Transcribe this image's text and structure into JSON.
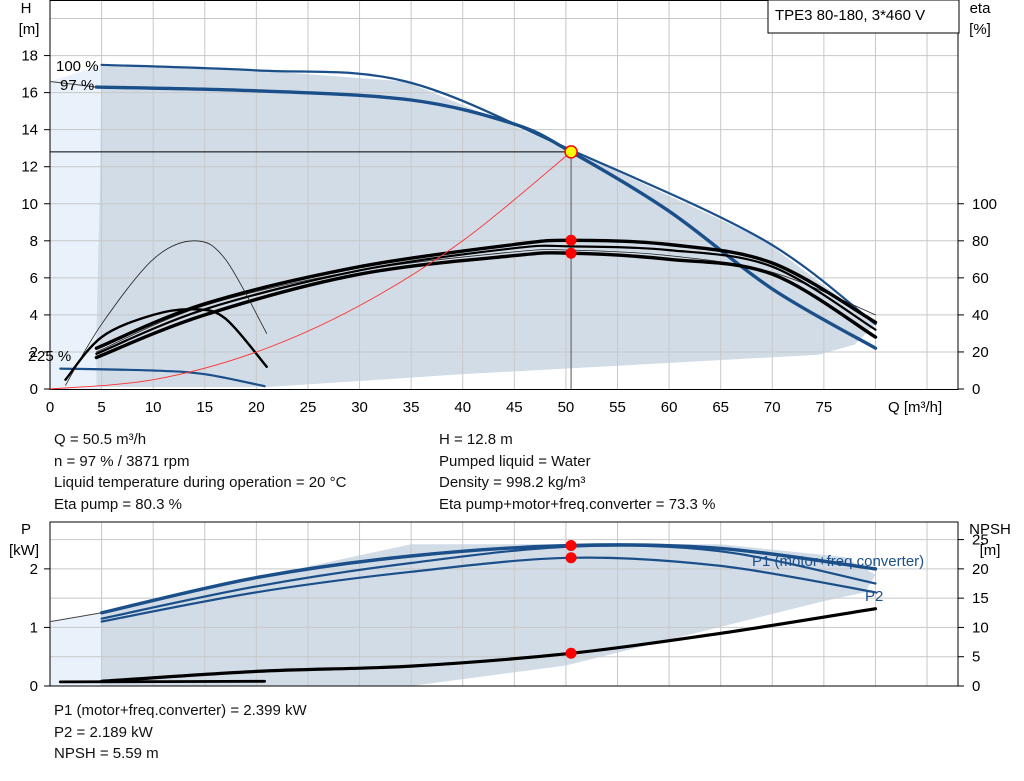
{
  "pump_title": "TPE3 80-180, 3*460 V",
  "info": {
    "q": "Q = 50.5 m³/h",
    "n": "n = 97 % / 3871 rpm",
    "liquid_temp": "Liquid temperature during operation = 20 °C",
    "eta_pump": "Eta pump = 80.3 %",
    "h": "H = 12.8 m",
    "pumped_liquid": "Pumped liquid = Water",
    "density": "Density = 998.2 kg/m³",
    "eta_total": "Eta pump+motor+freq.converter = 73.3 %",
    "p1": "P1 (motor+freq.converter) = 2.399 kW",
    "p2": "P2 = 2.189 kW",
    "npsh": "NPSH = 5.59 m"
  },
  "colors": {
    "area": "#d1dce7",
    "area_light": "#e9f2fb",
    "curve_blue": "#1b4f8a",
    "curve_black": "#000000",
    "system_curve": "#ff3030",
    "duty_point": "#ff0000",
    "duty_ring": "#ffff00",
    "grid": "#c8c8c8",
    "label_blue": "#1b4f8a"
  },
  "chart_data": [
    {
      "type": "line",
      "name": "head-efficiency",
      "title": "TPE3 80-180, 3*460 V",
      "xlabel": "Q [m³/h]",
      "ylabel_left": "H\n[m]",
      "ylabel_right": "eta\n[%]",
      "xlim": [
        0,
        88
      ],
      "ylim_left": [
        0,
        21
      ],
      "ylim_right": [
        0,
        210
      ],
      "x_ticks": [
        0,
        5,
        10,
        15,
        20,
        25,
        30,
        35,
        40,
        45,
        50,
        55,
        60,
        65,
        70,
        75
      ],
      "y_ticks_left": [
        0,
        2,
        4,
        6,
        8,
        10,
        12,
        14,
        16,
        18
      ],
      "y_ticks_right": [
        0,
        20,
        40,
        60,
        80,
        100
      ],
      "grid": true,
      "curve_labels": [
        "100 %",
        "97 %",
        "25 %",
        "2"
      ],
      "series": [
        {
          "id": "h_100",
          "axis": "left",
          "points": [
            [
              5,
              17.5
            ],
            [
              20,
              17.2
            ],
            [
              34.5,
              16.6
            ],
            [
              50.5,
              12.9
            ],
            [
              69,
              8.1
            ],
            [
              80,
              3.5
            ]
          ]
        },
        {
          "id": "h_97",
          "axis": "left",
          "points": [
            [
              4.5,
              16.3
            ],
            [
              20,
              16.1
            ],
            [
              35,
              15.6
            ],
            [
              45,
              14.3
            ],
            [
              50.5,
              12.8
            ],
            [
              60,
              9.6
            ],
            [
              70,
              5.4
            ],
            [
              80,
              2.2
            ]
          ]
        },
        {
          "id": "h_97_left",
          "axis": "left",
          "points": [
            [
              0,
              16.6
            ],
            [
              4.5,
              16.3
            ]
          ]
        },
        {
          "id": "h_25",
          "axis": "left",
          "points": [
            [
              1,
              1.1
            ],
            [
              10,
              1.0
            ],
            [
              15,
              0.8
            ],
            [
              20.8,
              0.15
            ]
          ]
        },
        {
          "id": "eta_100_thin",
          "axis": "right",
          "points": [
            [
              4.5,
              20
            ],
            [
              15,
              45
            ],
            [
              30,
              64
            ],
            [
              45,
              74
            ],
            [
              50.5,
              75
            ],
            [
              60,
              72
            ],
            [
              70,
              63
            ],
            [
              80,
              40
            ]
          ]
        },
        {
          "id": "eta_97",
          "axis": "right",
          "points": [
            [
              4.5,
              22
            ],
            [
              15,
              46
            ],
            [
              30,
              66
            ],
            [
              45,
              78
            ],
            [
              50.5,
              80.3
            ],
            [
              60,
              78
            ],
            [
              70,
              68
            ],
            [
              80,
              36
            ]
          ]
        },
        {
          "id": "eta_total",
          "axis": "right",
          "points": [
            [
              4.5,
              17
            ],
            [
              15,
              40
            ],
            [
              30,
              62
            ],
            [
              45,
              72
            ],
            [
              50.5,
              73.3
            ],
            [
              60,
              70
            ],
            [
              70,
              62
            ],
            [
              80,
              28
            ]
          ]
        },
        {
          "id": "eta_extra",
          "axis": "right",
          "points": [
            [
              4.5,
              19
            ],
            [
              15,
              43
            ],
            [
              30,
              64
            ],
            [
              45,
              76
            ],
            [
              50.5,
              77
            ],
            [
              60,
              75
            ],
            [
              70,
              66
            ],
            [
              80,
              32
            ]
          ]
        },
        {
          "id": "eta_25_thin",
          "axis": "right",
          "points": [
            [
              1.5,
              2
            ],
            [
              5,
              35
            ],
            [
              10,
              70
            ],
            [
              14,
              80
            ],
            [
              17,
              70
            ],
            [
              21,
              30
            ]
          ]
        },
        {
          "id": "eta_25",
          "axis": "right",
          "points": [
            [
              1.5,
              5
            ],
            [
              5,
              28
            ],
            [
              10,
              40
            ],
            [
              14,
              43
            ],
            [
              17,
              38
            ],
            [
              21,
              12
            ]
          ]
        },
        {
          "id": "system_curve",
          "axis": "left",
          "points": [
            [
              0,
              0
            ],
            [
              10,
              0.5
            ],
            [
              20,
              2.0
            ],
            [
              30,
              4.5
            ],
            [
              40,
              8.0
            ],
            [
              50.5,
              12.8
            ]
          ]
        }
      ],
      "duty_points": {
        "q": 50.5,
        "h": 12.8,
        "eta_pump": 80.3,
        "eta_total": 73.3
      }
    },
    {
      "type": "line",
      "name": "power-npsh",
      "ylabel_left": "P\n[kW]",
      "ylabel_right": "NPSH\n[m]",
      "xlim": [
        0,
        88
      ],
      "ylim_left": [
        0,
        2.8
      ],
      "ylim_right": [
        0,
        28
      ],
      "y_ticks_left": [
        0,
        1,
        2
      ],
      "y_ticks_right": [
        0,
        5,
        10,
        15,
        20,
        25
      ],
      "grid": true,
      "series_labels": [
        "P1 (motor+freq.converter)",
        "P2"
      ],
      "series": [
        {
          "id": "p1",
          "axis": "left",
          "points": [
            [
              5,
              1.25
            ],
            [
              20,
              1.85
            ],
            [
              35,
              2.22
            ],
            [
              50.5,
              2.399
            ],
            [
              65,
              2.35
            ],
            [
              80,
              2.0
            ]
          ]
        },
        {
          "id": "p1_97",
          "axis": "left",
          "points": [
            [
              5,
              1.15
            ],
            [
              20,
              1.7
            ],
            [
              35,
              2.1
            ],
            [
              50.5,
              2.38
            ],
            [
              65,
              2.3
            ],
            [
              80,
              1.75
            ]
          ]
        },
        {
          "id": "p2",
          "axis": "left",
          "points": [
            [
              5,
              1.1
            ],
            [
              20,
              1.6
            ],
            [
              35,
              1.95
            ],
            [
              50.5,
              2.189
            ],
            [
              65,
              2.05
            ],
            [
              80,
              1.6
            ]
          ]
        },
        {
          "id": "p_left",
          "axis": "left",
          "points": [
            [
              0,
              1.1
            ],
            [
              5,
              1.25
            ]
          ]
        },
        {
          "id": "npsh",
          "axis": "right",
          "points": [
            [
              5,
              0.8
            ],
            [
              20,
              2.5
            ],
            [
              35,
              3.4
            ],
            [
              50.5,
              5.59
            ],
            [
              65,
              9
            ],
            [
              80,
              13.2
            ]
          ]
        },
        {
          "id": "npsh_25",
          "axis": "right",
          "points": [
            [
              1,
              0.7
            ],
            [
              20.8,
              0.8
            ]
          ]
        }
      ],
      "duty_points": {
        "q": 50.5,
        "p1": 2.399,
        "p2": 2.189,
        "npsh": 5.59
      }
    }
  ]
}
